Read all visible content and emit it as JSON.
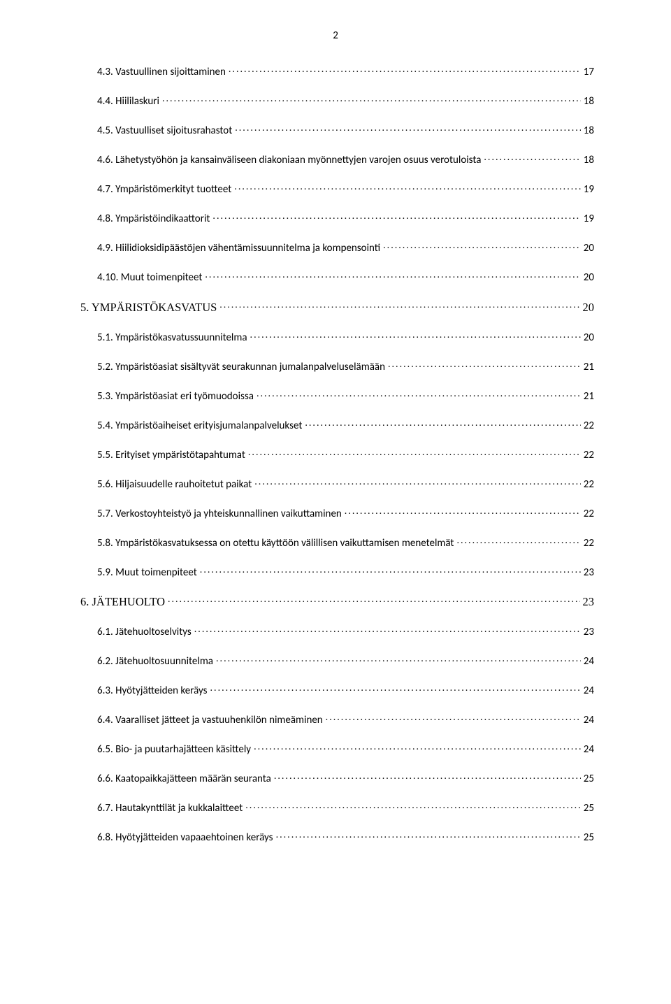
{
  "page_number": "2",
  "entries": [
    {
      "level": 2,
      "label": "4.3. Vastuullinen sijoittaminen",
      "page": "17"
    },
    {
      "level": 2,
      "label": "4.4. Hiililaskuri",
      "page": "18"
    },
    {
      "level": 2,
      "label": "4.5. Vastuulliset sijoitusrahastot",
      "page": "18"
    },
    {
      "level": 2,
      "label": "4.6. Lähetystyöhön ja kansainväliseen diakoniaan myönnettyjen varojen osuus verotuloista",
      "page": "18"
    },
    {
      "level": 2,
      "label": "4.7. Ympäristömerkityt tuotteet",
      "page": "19"
    },
    {
      "level": 2,
      "label": "4.8. Ympäristöindikaattorit",
      "page": "19"
    },
    {
      "level": 2,
      "label": "4.9. Hiilidioksidipäästöjen vähentämissuunnitelma ja kompensointi",
      "page": "20"
    },
    {
      "level": 2,
      "label": "4.10. Muut toimenpiteet",
      "page": "20"
    },
    {
      "level": 1,
      "label": "5. YMPÄRISTÖKASVATUS",
      "page": "20",
      "font": "times"
    },
    {
      "level": 2,
      "label": "5.1. Ympäristökasvatussuunnitelma",
      "page": "20"
    },
    {
      "level": 2,
      "label": "5.2. Ympäristöasiat sisältyvät seurakunnan jumalanpalveluselämään",
      "page": "21"
    },
    {
      "level": 2,
      "label": "5.3. Ympäristöasiat eri työmuodoissa",
      "page": "21"
    },
    {
      "level": 2,
      "label": "5.4. Ympäristöaiheiset erityisjumalanpalvelukset",
      "page": "22"
    },
    {
      "level": 2,
      "label": "5.5. Erityiset ympäristötapahtumat",
      "page": "22"
    },
    {
      "level": 2,
      "label": "5.6. Hiljaisuudelle rauhoitetut paikat",
      "page": "22"
    },
    {
      "level": 2,
      "label": "5.7. Verkostoyhteistyö ja yhteiskunnallinen vaikuttaminen",
      "page": "22"
    },
    {
      "level": 2,
      "label": "5.8.  Ympäristökasvatuksessa on otettu käyttöön välillisen vaikuttamisen menetelmät",
      "page": "22"
    },
    {
      "level": 2,
      "label": "5.9. Muut toimenpiteet",
      "page": "23"
    },
    {
      "level": 1,
      "label": "6. JÄTEHUOLTO",
      "page": "23",
      "font": "times"
    },
    {
      "level": 2,
      "label": "6.1. Jätehuoltoselvitys",
      "page": "23"
    },
    {
      "level": 2,
      "label": "6.2. Jätehuoltosuunnitelma",
      "page": "24"
    },
    {
      "level": 2,
      "label": "6.3. Hyötyjätteiden keräys",
      "page": "24"
    },
    {
      "level": 2,
      "label": "6.4. Vaaralliset jätteet ja vastuuhenkilön nimeäminen",
      "page": "24"
    },
    {
      "level": 2,
      "label": "6.5. Bio- ja puutarhajätteen käsittely",
      "page": "24"
    },
    {
      "level": 2,
      "label": "6.6. Kaatopaikkajätteen määrän seuranta",
      "page": "25"
    },
    {
      "level": 2,
      "label": "6.7. Hautakynttilät ja kukkalaitteet",
      "page": "25"
    },
    {
      "level": 2,
      "label": "6.8. Hyötyjätteiden vapaaehtoinen keräys",
      "page": "25"
    }
  ]
}
